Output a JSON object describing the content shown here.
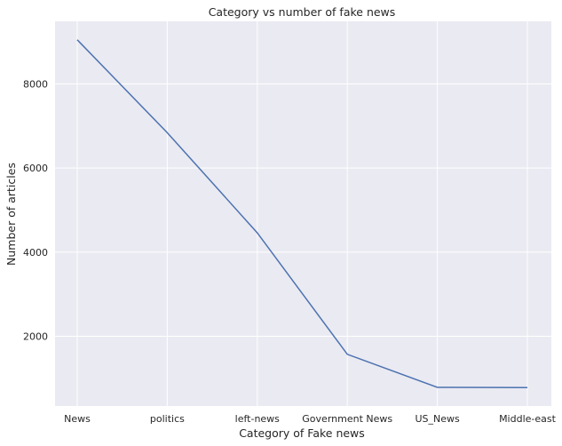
{
  "chart_data": {
    "type": "line",
    "title": "Category vs number of fake news",
    "xlabel": "Category of Fake news",
    "ylabel": "Number of articles",
    "categories": [
      "News",
      "politics",
      "left-news",
      "Government News",
      "US_News",
      "Middle-east"
    ],
    "values": [
      9050,
      6841,
      4459,
      1570,
      783,
      778
    ],
    "y_ticks": [
      2000,
      4000,
      6000,
      8000
    ],
    "ylim": [
      340,
      9490
    ],
    "grid": true,
    "legend": "none",
    "colors": {
      "line": "#4c72b0",
      "background": "#eaeaf2",
      "grid": "#ffffff"
    }
  }
}
